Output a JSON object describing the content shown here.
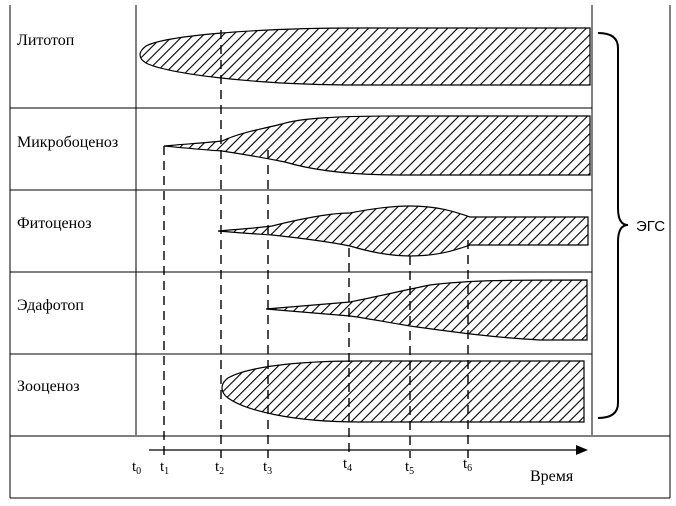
{
  "rows": [
    {
      "label": "Литотоп"
    },
    {
      "label": "Микробоценоз"
    },
    {
      "label": "Фитоценоз"
    },
    {
      "label": "Эдафотоп"
    },
    {
      "label": "Зооценоз"
    }
  ],
  "time_marks": [
    {
      "base": "t",
      "sub": "0"
    },
    {
      "base": "t",
      "sub": "1"
    },
    {
      "base": "t",
      "sub": "2"
    },
    {
      "base": "t",
      "sub": "3"
    },
    {
      "base": "t",
      "sub": "4"
    },
    {
      "base": "t",
      "sub": "5"
    },
    {
      "base": "t",
      "sub": "6"
    }
  ],
  "axis": {
    "label": "Время"
  },
  "group": {
    "label": "ЭГС"
  }
}
